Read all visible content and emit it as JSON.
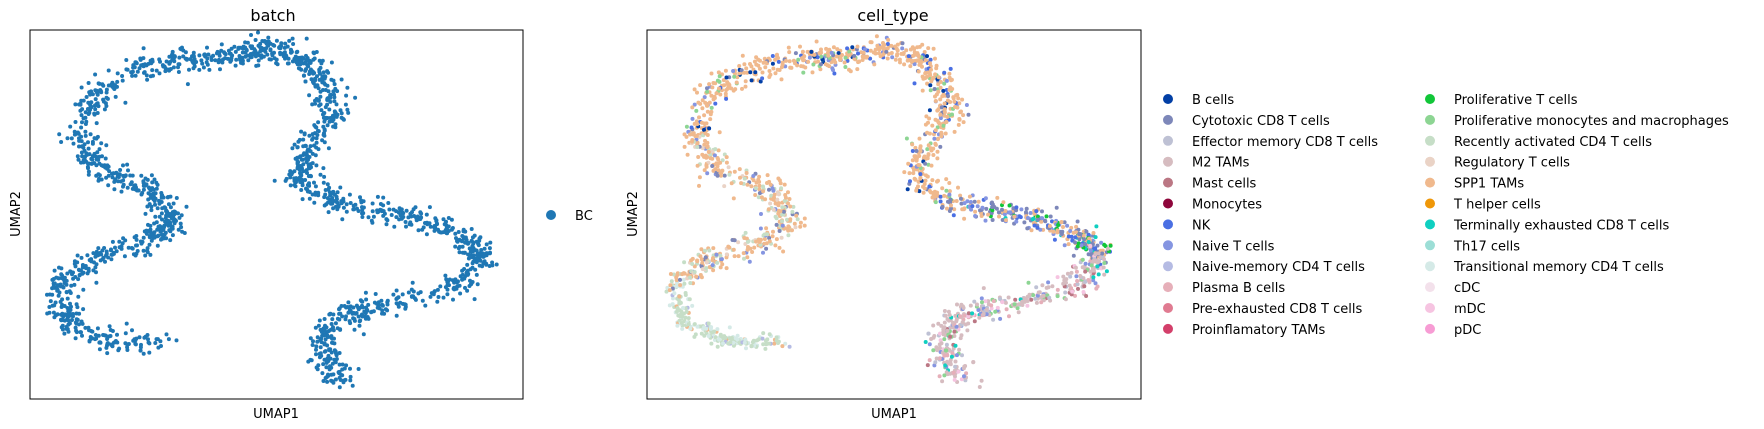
{
  "chart_data": [
    {
      "type": "scatter",
      "title": "batch",
      "xlabel": "UMAP1",
      "ylabel": "UMAP2",
      "grid": false,
      "legend_position": "right",
      "series": [
        {
          "name": "BC",
          "color": "#1f77b4"
        }
      ],
      "branches": [
        {
          "curve": [
            [
              0.28,
              0.85
            ],
            [
              0.16,
              0.84
            ],
            [
              0.07,
              0.79
            ],
            [
              0.06,
              0.68
            ],
            [
              0.13,
              0.62
            ],
            [
              0.23,
              0.58
            ],
            [
              0.29,
              0.52
            ],
            [
              0.25,
              0.43
            ],
            [
              0.13,
              0.37
            ],
            [
              0.1,
              0.28
            ],
            [
              0.13,
              0.18
            ],
            [
              0.22,
              0.1
            ],
            [
              0.32,
              0.08
            ],
            [
              0.42,
              0.07
            ],
            [
              0.48,
              0.05
            ],
            [
              0.55,
              0.07
            ],
            [
              0.59,
              0.14
            ],
            [
              0.62,
              0.22
            ],
            [
              0.56,
              0.32
            ],
            [
              0.54,
              0.4
            ],
            [
              0.62,
              0.47
            ],
            [
              0.76,
              0.5
            ],
            [
              0.88,
              0.56
            ],
            [
              0.92,
              0.62
            ],
            [
              0.86,
              0.7
            ],
            [
              0.71,
              0.75
            ],
            [
              0.62,
              0.78
            ],
            [
              0.59,
              0.87
            ],
            [
              0.64,
              0.95
            ]
          ],
          "points": 1800,
          "spread": 0.016
        }
      ]
    },
    {
      "type": "scatter",
      "title": "cell_type",
      "xlabel": "UMAP1",
      "ylabel": "UMAP2",
      "grid": false,
      "legend_position": "right",
      "series": [
        {
          "name": "B cells",
          "color": "#023fa5"
        },
        {
          "name": "Cytotoxic CD8 T cells",
          "color": "#7d87b9"
        },
        {
          "name": "Effector memory CD8 T cells",
          "color": "#bec1d4"
        },
        {
          "name": "M2 TAMs",
          "color": "#d6bcc0"
        },
        {
          "name": "Mast cells",
          "color": "#bb7784"
        },
        {
          "name": "Monocytes",
          "color": "#8e063b"
        },
        {
          "name": "NK",
          "color": "#4a6fe3"
        },
        {
          "name": "Naive T cells",
          "color": "#8595e1"
        },
        {
          "name": "Naive-memory CD4 T cells",
          "color": "#b5bbe3"
        },
        {
          "name": "Plasma B cells",
          "color": "#e6afb9"
        },
        {
          "name": "Pre-exhausted CD8 T cells",
          "color": "#e07b91"
        },
        {
          "name": "Proinflamatory TAMs",
          "color": "#d33f6a"
        },
        {
          "name": "Proliferative T cells",
          "color": "#11c638"
        },
        {
          "name": "Proliferative monocytes and macrophages",
          "color": "#8dd593"
        },
        {
          "name": "Recently activated CD4 T cells",
          "color": "#c6dec7"
        },
        {
          "name": "Regulatory T cells",
          "color": "#ead3c6"
        },
        {
          "name": "SPP1 TAMs",
          "color": "#f0b98d"
        },
        {
          "name": "T helper cells",
          "color": "#ef9708"
        },
        {
          "name": "Terminally exhausted CD8 T cells",
          "color": "#0fcfc0"
        },
        {
          "name": "Th17 cells",
          "color": "#9cded6"
        },
        {
          "name": "Transitional memory CD4 T cells",
          "color": "#d5eae7"
        },
        {
          "name": "cDC",
          "color": "#f3e1eb"
        },
        {
          "name": "mDC",
          "color": "#f6c4e1"
        },
        {
          "name": "pDC",
          "color": "#f79cd4"
        }
      ],
      "branches": [
        {
          "curve": [
            [
              0.28,
              0.85
            ],
            [
              0.16,
              0.84
            ],
            [
              0.07,
              0.79
            ],
            [
              0.06,
              0.68
            ]
          ],
          "points": 200,
          "spread": 0.01,
          "mix": {
            "Recently activated CD4 T cells": 6,
            "Transitional memory CD4 T cells": 3,
            "Naive-memory CD4 T cells": 1,
            "SPP1 TAMs": 1
          }
        },
        {
          "curve": [
            [
              0.06,
              0.68
            ],
            [
              0.13,
              0.62
            ],
            [
              0.23,
              0.58
            ],
            [
              0.29,
              0.52
            ],
            [
              0.25,
              0.43
            ],
            [
              0.13,
              0.37
            ],
            [
              0.1,
              0.28
            ]
          ],
          "points": 400,
          "spread": 0.016,
          "mix": {
            "SPP1 TAMs": 8,
            "Recently activated CD4 T cells": 3,
            "Naive T cells": 1,
            "Cytotoxic CD8 T cells": 1,
            "Regulatory T cells": 1
          }
        },
        {
          "curve": [
            [
              0.1,
              0.28
            ],
            [
              0.13,
              0.18
            ],
            [
              0.22,
              0.1
            ],
            [
              0.32,
              0.08
            ],
            [
              0.42,
              0.07
            ],
            [
              0.48,
              0.05
            ],
            [
              0.55,
              0.07
            ],
            [
              0.59,
              0.14
            ],
            [
              0.62,
              0.22
            ],
            [
              0.56,
              0.32
            ],
            [
              0.54,
              0.4
            ],
            [
              0.62,
              0.47
            ]
          ],
          "points": 700,
          "spread": 0.016,
          "mix": {
            "SPP1 TAMs": 12,
            "B cells": 1,
            "Cytotoxic CD8 T cells": 1,
            "NK": 1,
            "Naive T cells": 1,
            "Proliferative monocytes and macrophages": 1
          }
        },
        {
          "curve": [
            [
              0.62,
              0.47
            ],
            [
              0.76,
              0.5
            ],
            [
              0.88,
              0.56
            ],
            [
              0.92,
              0.62
            ]
          ],
          "points": 300,
          "spread": 0.016,
          "mix": {
            "Cytotoxic CD8 T cells": 4,
            "SPP1 TAMs": 3,
            "Naive T cells": 2,
            "NK": 1,
            "Terminally exhausted CD8 T cells": 1,
            "Proliferative T cells": 1
          }
        },
        {
          "curve": [
            [
              0.92,
              0.62
            ],
            [
              0.86,
              0.7
            ],
            [
              0.71,
              0.75
            ],
            [
              0.62,
              0.78
            ],
            [
              0.59,
              0.87
            ],
            [
              0.64,
              0.95
            ]
          ],
          "points": 400,
          "spread": 0.016,
          "mix": {
            "M2 TAMs": 8,
            "Effector memory CD8 T cells": 2,
            "Plasma B cells": 2,
            "Naive T cells": 1,
            "Terminally exhausted CD8 T cells": 1,
            "Mast cells": 1,
            "Proliferative monocytes and macrophages": 1,
            "mDC": 1
          }
        }
      ]
    }
  ]
}
